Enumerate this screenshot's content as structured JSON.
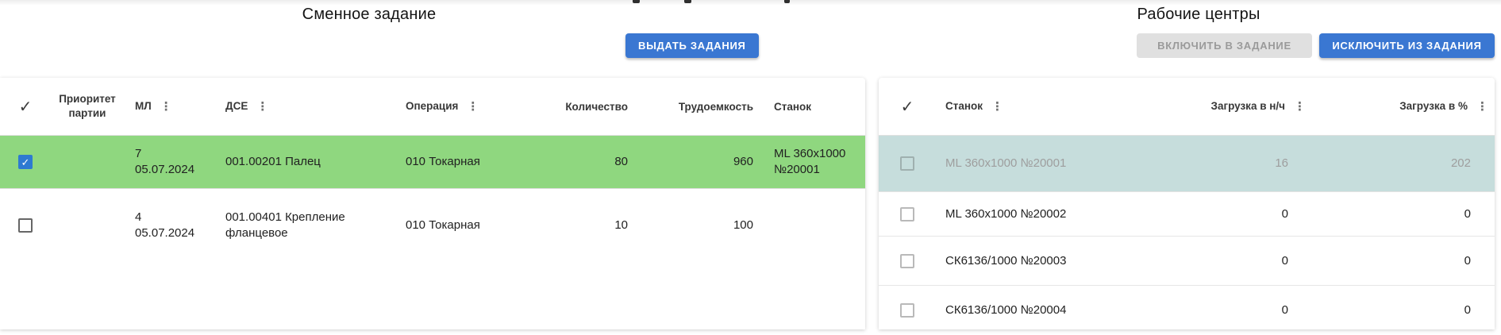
{
  "icons": {
    "check": "✓",
    "kebab": "⋮"
  },
  "colors": {
    "accent_blue": "#3a77d2",
    "selected_row_green": "#8fd77f",
    "highlighted_row_teal": "#c6dddc",
    "disabled_button_bg": "#e0e0e0",
    "checkbox_checked_blue": "#2e7ad1"
  },
  "shift_task": {
    "title": "Сменное задание",
    "issue_tasks_button": "ВЫДАТЬ ЗАДАНИЯ",
    "columns": {
      "priority": "Приоритет партии",
      "ml": "МЛ",
      "dse": "ДСЕ",
      "operation": "Операция",
      "quantity": "Количество",
      "labor": "Трудоемкость",
      "machine": "Станок"
    },
    "rows": [
      {
        "selected": true,
        "priority": "",
        "ml_number": "7",
        "ml_date": "05.07.2024",
        "dse": "001.00201 Палец",
        "operation": "010 Токарная",
        "quantity": "80",
        "labor": "960",
        "machine_model": "ML 360x1000",
        "machine_number": "№20001"
      },
      {
        "selected": false,
        "priority": "",
        "ml_number": "4",
        "ml_date": "05.07.2024",
        "dse": "001.00401 Крепление фланцевое",
        "operation": "010 Токарная",
        "quantity": "10",
        "labor": "100",
        "machine_model": "",
        "machine_number": ""
      }
    ]
  },
  "work_centers": {
    "title": "Рабочие центры",
    "include_button": "ВКЛЮЧИТЬ В ЗАДАНИЕ",
    "exclude_button": "ИСКЛЮЧИТЬ ИЗ ЗАДАНИЯ",
    "columns": {
      "machine": "Станок",
      "load_nh": "Загрузка в н/ч",
      "load_pct": "Загрузка в %"
    },
    "rows": [
      {
        "machine": "ML 360x1000 №20001",
        "load_nh": "16",
        "load_pct": "202",
        "highlighted": true
      },
      {
        "machine": "ML 360x1000 №20002",
        "load_nh": "0",
        "load_pct": "0",
        "highlighted": false
      },
      {
        "machine": "СК6136/1000 №20003",
        "load_nh": "0",
        "load_pct": "0",
        "highlighted": false
      },
      {
        "machine": "СК6136/1000 №20004",
        "load_nh": "0",
        "load_pct": "0",
        "highlighted": false
      }
    ]
  }
}
